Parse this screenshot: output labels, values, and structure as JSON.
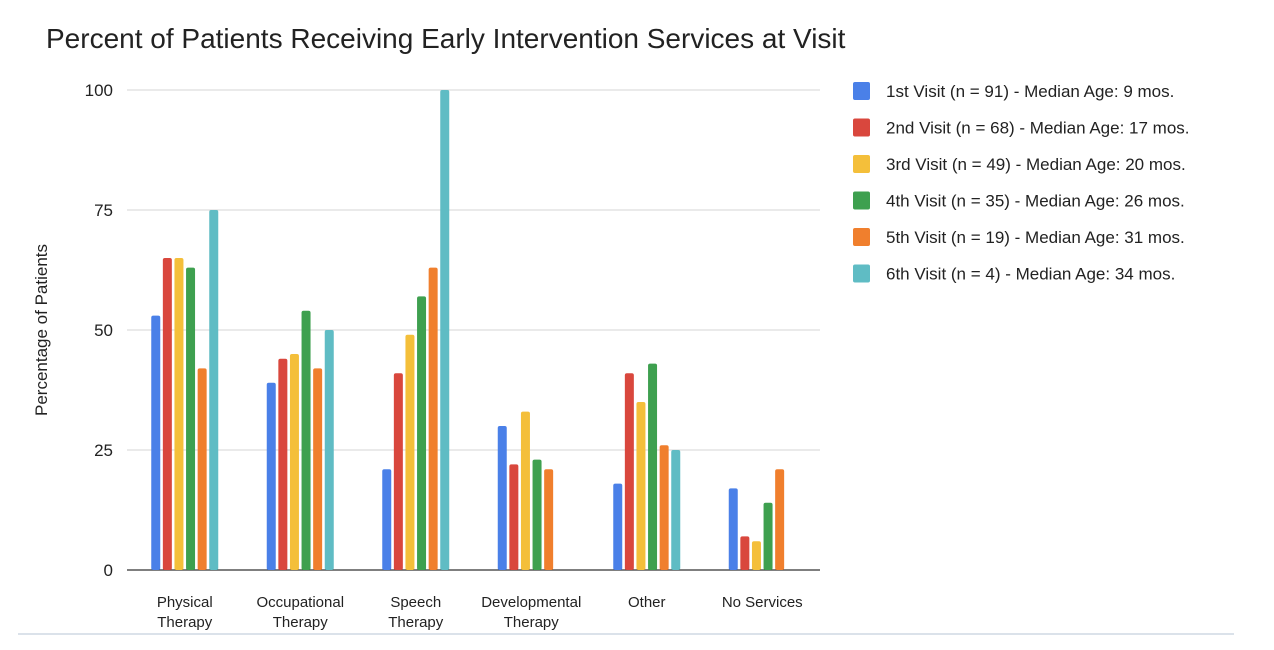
{
  "chart_data": {
    "type": "bar",
    "title": "Percent of Patients Receiving Early Intervention Services at Visit",
    "ylabel": "Percentage of Patients",
    "xlabel": "",
    "ylim": [
      0,
      100
    ],
    "yticks": [
      "0",
      "25",
      "50",
      "75",
      "100"
    ],
    "grid": true,
    "legend_position": "right",
    "categories": [
      [
        "Physical",
        "Therapy"
      ],
      [
        "Occupational",
        "Therapy"
      ],
      [
        "Speech",
        "Therapy"
      ],
      [
        "Developmental",
        "Therapy"
      ],
      [
        "Other"
      ],
      [
        "No Services"
      ]
    ],
    "series": [
      {
        "name": "1st Visit",
        "detail": "(n = 91) - Median Age: 9 mos.",
        "color": "#4a80e8",
        "values": [
          53,
          39,
          21,
          30,
          18,
          17
        ]
      },
      {
        "name": "2nd Visit",
        "detail": "(n = 68) - Median Age: 17 mos.",
        "color": "#d9473d",
        "values": [
          65,
          44,
          41,
          22,
          41,
          7
        ]
      },
      {
        "name": "3rd Visit",
        "detail": "(n = 49) - Median Age: 20 mos.",
        "color": "#f4bf3a",
        "values": [
          65,
          45,
          49,
          33,
          35,
          6
        ]
      },
      {
        "name": "4th Visit",
        "detail": "(n = 35) - Median Age: 26 mos.",
        "color": "#3ea04f",
        "values": [
          63,
          54,
          57,
          23,
          43,
          14
        ]
      },
      {
        "name": "5th Visit",
        "detail": "(n = 19) - Median Age: 31 mos.",
        "color": "#f07f2d",
        "values": [
          42,
          42,
          63,
          21,
          26,
          21
        ]
      },
      {
        "name": "6th Visit",
        "detail": "(n = 4) - Median Age: 34 mos.",
        "color": "#5fbcc4",
        "values": [
          75,
          50,
          100,
          null,
          25,
          null
        ]
      }
    ]
  }
}
